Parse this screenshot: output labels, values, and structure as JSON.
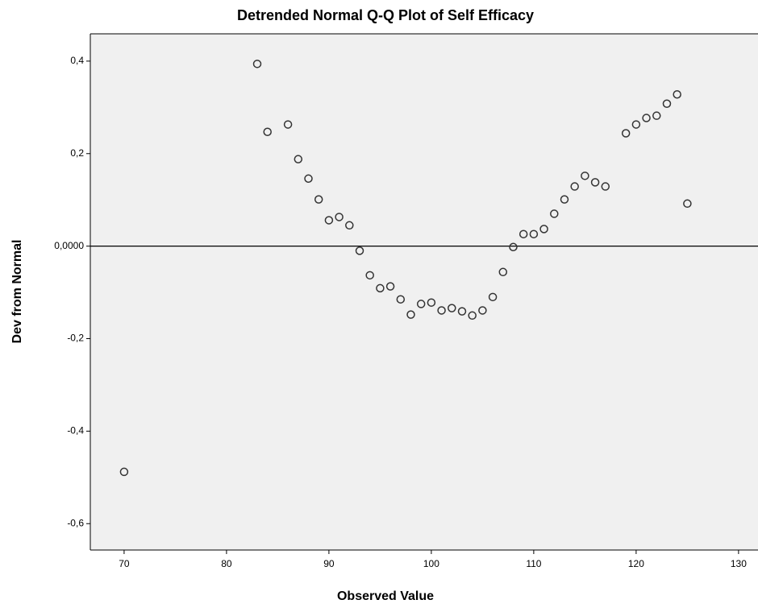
{
  "chart_data": {
    "type": "scatter",
    "title": "Detrended Normal Q-Q Plot of Self Efficacy",
    "x_label": "Observed Value",
    "y_label": "Dev from Normal",
    "xlim": [
      66.7,
      131.9
    ],
    "ylim": [
      -0.657,
      0.459
    ],
    "xticks": [
      70,
      80,
      90,
      100,
      110,
      120,
      130
    ],
    "yticks": [
      {
        "value": 0.4,
        "label": "0,4"
      },
      {
        "value": 0.2,
        "label": "0,2"
      },
      {
        "value": 0,
        "label": "0,0000"
      },
      {
        "value": -0.2,
        "label": "-0,2"
      },
      {
        "value": -0.4,
        "label": "-0,4"
      },
      {
        "value": -0.6,
        "label": "-0,6"
      }
    ],
    "reference_line": 0,
    "color": "#333333",
    "x": [
      70,
      83,
      84,
      86,
      87,
      88,
      89,
      90,
      91,
      92,
      93,
      94,
      95,
      96,
      97,
      98,
      99,
      100,
      101,
      102,
      103,
      104,
      105,
      106,
      107,
      108,
      109,
      110,
      111,
      112,
      113,
      114,
      115,
      116,
      117,
      119,
      120,
      121,
      122,
      123,
      124,
      125
    ],
    "values": [
      -0.488,
      0.394,
      0.247,
      0.263,
      0.188,
      0.146,
      0.101,
      0.056,
      0.063,
      0.045,
      -0.01,
      -0.063,
      -0.091,
      -0.087,
      -0.115,
      -0.148,
      -0.125,
      -0.122,
      -0.139,
      -0.134,
      -0.141,
      -0.15,
      -0.139,
      -0.11,
      -0.056,
      -0.002,
      0.026,
      0.026,
      0.037,
      0.07,
      0.101,
      0.129,
      0.152,
      0.138,
      0.129,
      0.244,
      0.263,
      0.277,
      0.282,
      0.308,
      0.328,
      0.092
    ]
  }
}
